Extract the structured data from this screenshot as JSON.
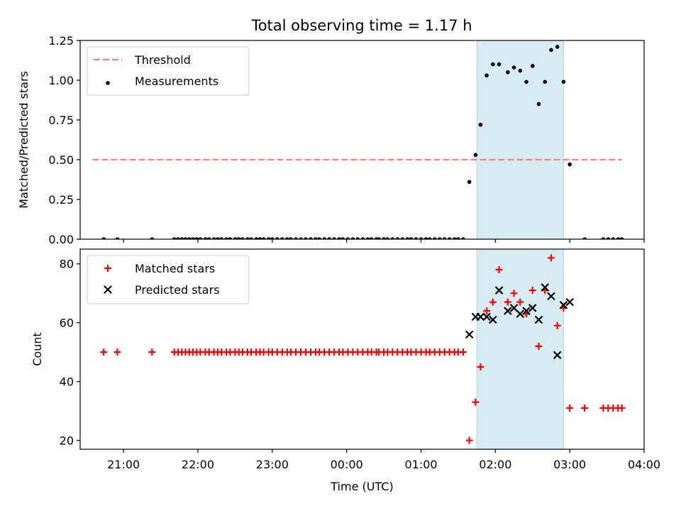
{
  "title": "Total observing time = 1.17 h",
  "chart_data": [
    {
      "type": "scatter",
      "ylabel": "Matched/Predicted stars",
      "xlim": [
        "20:25",
        "04:00"
      ],
      "ylim": [
        0,
        1.25
      ],
      "yticks": [
        0.0,
        0.25,
        0.5,
        0.75,
        1.0,
        1.25
      ],
      "ytick_labels": [
        "0.00",
        "0.25",
        "0.50",
        "0.75",
        "1.00",
        "1.25"
      ],
      "legend_position": "top-left",
      "highlight_span": {
        "start": "01:45",
        "end": "02:55",
        "color": "#add8e6"
      },
      "threshold": {
        "name": "Threshold",
        "value": 0.5,
        "x_range": [
          "20:35",
          "03:42"
        ],
        "color": "#ff7f7f",
        "style": "dashed"
      },
      "series": [
        {
          "name": "Measurements",
          "color": "#000000",
          "marker": "dot",
          "points": [
            [
              "20:44",
              0
            ],
            [
              "20:55",
              0
            ],
            [
              "21:23",
              0
            ],
            [
              "21:41",
              0
            ],
            [
              "21:44",
              0
            ],
            [
              "21:47",
              0
            ],
            [
              "21:50",
              0
            ],
            [
              "21:53",
              0
            ],
            [
              "21:56",
              0
            ],
            [
              "21:59",
              0
            ],
            [
              "22:02",
              0
            ],
            [
              "22:06",
              0
            ],
            [
              "22:09",
              0
            ],
            [
              "22:13",
              0
            ],
            [
              "22:16",
              0
            ],
            [
              "22:19",
              0
            ],
            [
              "22:23",
              0
            ],
            [
              "22:26",
              0
            ],
            [
              "22:30",
              0
            ],
            [
              "22:33",
              0
            ],
            [
              "22:36",
              0
            ],
            [
              "22:40",
              0
            ],
            [
              "22:43",
              0
            ],
            [
              "22:47",
              0
            ],
            [
              "22:50",
              0
            ],
            [
              "22:53",
              0
            ],
            [
              "22:57",
              0
            ],
            [
              "23:00",
              0
            ],
            [
              "23:04",
              0
            ],
            [
              "23:08",
              0
            ],
            [
              "23:12",
              0
            ],
            [
              "23:15",
              0
            ],
            [
              "23:19",
              0
            ],
            [
              "23:23",
              0
            ],
            [
              "23:27",
              0
            ],
            [
              "23:31",
              0
            ],
            [
              "23:35",
              0
            ],
            [
              "23:38",
              0
            ],
            [
              "23:42",
              0
            ],
            [
              "23:46",
              0
            ],
            [
              "23:50",
              0
            ],
            [
              "23:54",
              0
            ],
            [
              "23:57",
              0
            ],
            [
              "00:01",
              0
            ],
            [
              "00:05",
              0
            ],
            [
              "00:09",
              0
            ],
            [
              "00:13",
              0
            ],
            [
              "00:17",
              0
            ],
            [
              "00:20",
              0
            ],
            [
              "00:24",
              0
            ],
            [
              "00:26",
              0
            ],
            [
              "00:30",
              0
            ],
            [
              "00:33",
              0
            ],
            [
              "00:37",
              0
            ],
            [
              "00:41",
              0
            ],
            [
              "00:45",
              0
            ],
            [
              "00:49",
              0
            ],
            [
              "00:52",
              0
            ],
            [
              "00:56",
              0
            ],
            [
              "01:00",
              0
            ],
            [
              "01:04",
              0
            ],
            [
              "01:07",
              0
            ],
            [
              "01:11",
              0
            ],
            [
              "01:15",
              0
            ],
            [
              "01:19",
              0
            ],
            [
              "01:23",
              0
            ],
            [
              "01:27",
              0
            ],
            [
              "01:30",
              0
            ],
            [
              "01:34",
              0
            ],
            [
              "01:39",
              0.36
            ],
            [
              "01:44",
              0.53
            ],
            [
              "01:48",
              0.72
            ],
            [
              "01:53",
              1.03
            ],
            [
              "01:58",
              1.1
            ],
            [
              "02:03",
              1.1
            ],
            [
              "02:10",
              1.05
            ],
            [
              "02:15",
              1.08
            ],
            [
              "02:20",
              1.06
            ],
            [
              "02:25",
              0.99
            ],
            [
              "02:30",
              1.09
            ],
            [
              "02:35",
              0.85
            ],
            [
              "02:40",
              0.99
            ],
            [
              "02:45",
              1.19
            ],
            [
              "02:50",
              1.21
            ],
            [
              "02:55",
              0.99
            ],
            [
              "03:00",
              0.47
            ],
            [
              "03:12",
              0
            ],
            [
              "03:27",
              0
            ],
            [
              "03:31",
              0
            ],
            [
              "03:35",
              0
            ],
            [
              "03:39",
              0
            ],
            [
              "03:42",
              0
            ]
          ]
        }
      ]
    },
    {
      "type": "scatter",
      "xlabel": "Time (UTC)",
      "ylabel": "Count",
      "xlim": [
        "20:25",
        "04:00"
      ],
      "ylim": [
        17,
        85
      ],
      "yticks": [
        20,
        40,
        60,
        80
      ],
      "ytick_labels": [
        "20",
        "40",
        "60",
        "80"
      ],
      "xticks": [
        "21:00",
        "22:00",
        "23:00",
        "00:00",
        "01:00",
        "02:00",
        "03:00",
        "04:00"
      ],
      "legend_position": "top-left",
      "highlight_span": {
        "start": "01:45",
        "end": "02:55",
        "color": "#add8e6"
      },
      "series": [
        {
          "name": "Matched stars",
          "color": "#ff0000",
          "marker": "plus",
          "points": [
            [
              "20:44",
              50
            ],
            [
              "20:55",
              50
            ],
            [
              "21:23",
              50
            ],
            [
              "21:41",
              50
            ],
            [
              "21:44",
              50
            ],
            [
              "21:47",
              50
            ],
            [
              "21:50",
              50
            ],
            [
              "21:53",
              50
            ],
            [
              "21:56",
              50
            ],
            [
              "21:59",
              50
            ],
            [
              "22:02",
              50
            ],
            [
              "22:06",
              50
            ],
            [
              "22:09",
              50
            ],
            [
              "22:13",
              50
            ],
            [
              "22:16",
              50
            ],
            [
              "22:19",
              50
            ],
            [
              "22:23",
              50
            ],
            [
              "22:26",
              50
            ],
            [
              "22:30",
              50
            ],
            [
              "22:33",
              50
            ],
            [
              "22:36",
              50
            ],
            [
              "22:40",
              50
            ],
            [
              "22:43",
              50
            ],
            [
              "22:47",
              50
            ],
            [
              "22:50",
              50
            ],
            [
              "22:53",
              50
            ],
            [
              "22:57",
              50
            ],
            [
              "23:00",
              50
            ],
            [
              "23:04",
              50
            ],
            [
              "23:08",
              50
            ],
            [
              "23:12",
              50
            ],
            [
              "23:15",
              50
            ],
            [
              "23:19",
              50
            ],
            [
              "23:23",
              50
            ],
            [
              "23:27",
              50
            ],
            [
              "23:31",
              50
            ],
            [
              "23:35",
              50
            ],
            [
              "23:38",
              50
            ],
            [
              "23:42",
              50
            ],
            [
              "23:46",
              50
            ],
            [
              "23:50",
              50
            ],
            [
              "23:54",
              50
            ],
            [
              "23:57",
              50
            ],
            [
              "00:01",
              50
            ],
            [
              "00:05",
              50
            ],
            [
              "00:09",
              50
            ],
            [
              "00:13",
              50
            ],
            [
              "00:17",
              50
            ],
            [
              "00:20",
              50
            ],
            [
              "00:24",
              50
            ],
            [
              "00:26",
              50
            ],
            [
              "00:30",
              50
            ],
            [
              "00:33",
              50
            ],
            [
              "00:37",
              50
            ],
            [
              "00:41",
              50
            ],
            [
              "00:45",
              50
            ],
            [
              "00:49",
              50
            ],
            [
              "00:52",
              50
            ],
            [
              "00:56",
              50
            ],
            [
              "01:00",
              50
            ],
            [
              "01:04",
              50
            ],
            [
              "01:07",
              50
            ],
            [
              "01:11",
              50
            ],
            [
              "01:15",
              50
            ],
            [
              "01:19",
              50
            ],
            [
              "01:23",
              50
            ],
            [
              "01:27",
              50
            ],
            [
              "01:30",
              50
            ],
            [
              "01:34",
              50
            ],
            [
              "01:39",
              20
            ],
            [
              "01:44",
              33
            ],
            [
              "01:48",
              45
            ],
            [
              "01:53",
              64
            ],
            [
              "01:58",
              67
            ],
            [
              "02:03",
              78
            ],
            [
              "02:10",
              67
            ],
            [
              "02:15",
              70
            ],
            [
              "02:20",
              67
            ],
            [
              "02:25",
              63
            ],
            [
              "02:30",
              71
            ],
            [
              "02:35",
              52
            ],
            [
              "02:40",
              71
            ],
            [
              "02:45",
              82
            ],
            [
              "02:50",
              59
            ],
            [
              "02:55",
              65
            ],
            [
              "03:00",
              31
            ],
            [
              "03:12",
              31
            ],
            [
              "03:27",
              31
            ],
            [
              "03:31",
              31
            ],
            [
              "03:35",
              31
            ],
            [
              "03:39",
              31
            ],
            [
              "03:42",
              31
            ]
          ]
        },
        {
          "name": "Predicted stars",
          "color": "#000000",
          "marker": "x",
          "points": [
            [
              "01:39",
              56
            ],
            [
              "01:44",
              62
            ],
            [
              "01:48",
              62
            ],
            [
              "01:53",
              62
            ],
            [
              "01:58",
              61
            ],
            [
              "02:03",
              71
            ],
            [
              "02:10",
              64
            ],
            [
              "02:15",
              65
            ],
            [
              "02:20",
              63
            ],
            [
              "02:25",
              64
            ],
            [
              "02:30",
              65
            ],
            [
              "02:35",
              61
            ],
            [
              "02:40",
              72
            ],
            [
              "02:45",
              69
            ],
            [
              "02:50",
              49
            ],
            [
              "02:55",
              66
            ],
            [
              "03:00",
              67
            ]
          ]
        }
      ]
    }
  ]
}
